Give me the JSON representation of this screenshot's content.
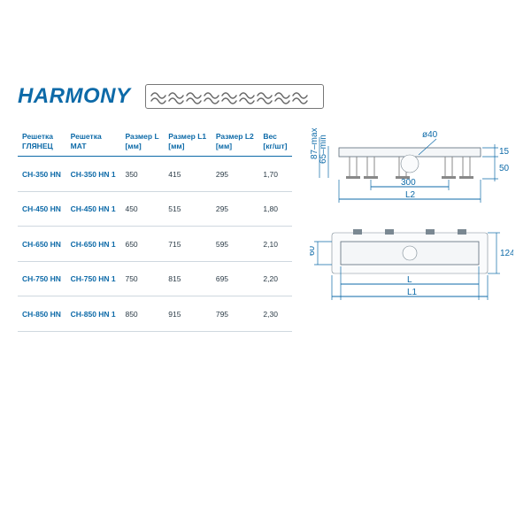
{
  "title": "HARMONY",
  "table": {
    "columns": [
      {
        "l1": "Решетка",
        "l2": "ГЛЯНЕЦ"
      },
      {
        "l1": "Решетка",
        "l2": "МАТ"
      },
      {
        "l1": "Размер L",
        "l2": "[мм]"
      },
      {
        "l1": "Размер L1",
        "l2": "[мм]"
      },
      {
        "l1": "Размер L2",
        "l2": "[мм]"
      },
      {
        "l1": "Вес",
        "l2": "[кг/шт]"
      }
    ],
    "rows": [
      [
        "CH-350 HN",
        "CH-350 HN 1",
        "350",
        "415",
        "295",
        "1,70"
      ],
      [
        "CH-450 HN",
        "CH-450 HN 1",
        "450",
        "515",
        "295",
        "1,80"
      ],
      [
        "CH-650 HN",
        "CH-650 HN 1",
        "650",
        "715",
        "595",
        "2,10"
      ],
      [
        "CH-750 HN",
        "CH-750 HN 1",
        "750",
        "815",
        "695",
        "2,20"
      ],
      [
        "CH-850 HN",
        "CH-850 HN 1",
        "850",
        "915",
        "795",
        "2,30"
      ]
    ]
  },
  "diagram": {
    "labels": {
      "h_max": "87–max",
      "h_min": "65–min",
      "pipe_d": "ø40",
      "step": "300",
      "L2": "L2",
      "side_60": "60",
      "L": "L",
      "L1": "L1",
      "top_15": "15",
      "top_50": "50",
      "right_124": "124"
    },
    "colors": {
      "line": "#0d6aa8",
      "body": "#f4f6f8",
      "stroke": "#5a6a78"
    }
  }
}
